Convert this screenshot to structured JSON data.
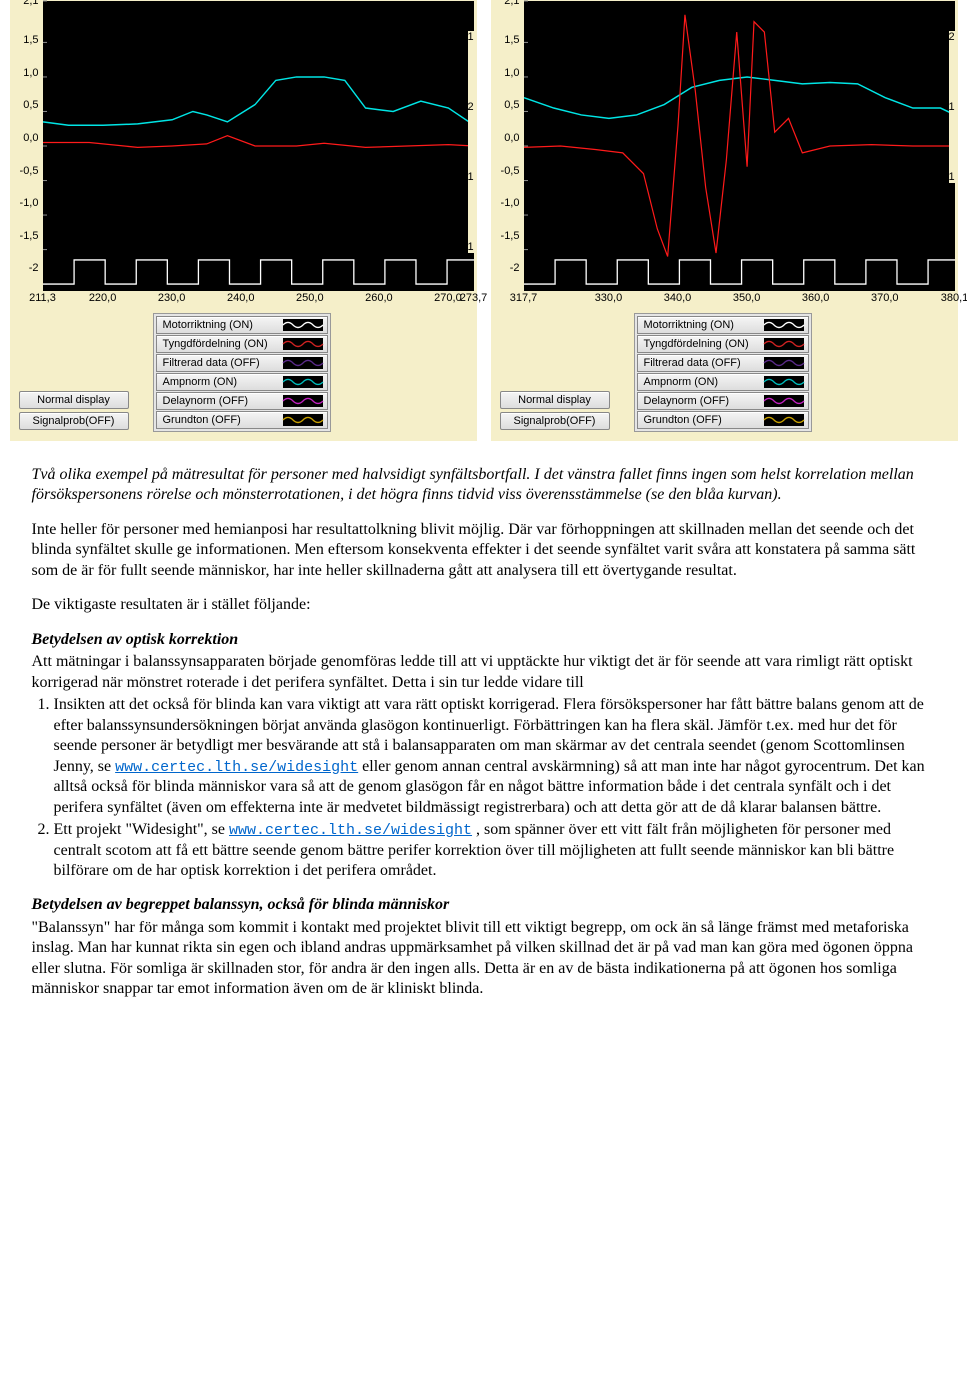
{
  "panels": [
    {
      "bg": "#000000",
      "panel_bg": "#f5efc9",
      "yticks": [
        "2,1",
        "1,5",
        "1,0",
        "0,5",
        "0,0",
        "-0,5",
        "-1,0",
        "-1,5",
        "-2"
      ],
      "ylim": [
        -2.1,
        2.1
      ],
      "xticks": [
        "211,3",
        "220,0",
        "230,0",
        "240,0",
        "250,0",
        "260,0",
        "270,0",
        "273,7"
      ],
      "xlim": [
        211.3,
        273.7
      ],
      "series": {
        "cyan": {
          "color": "#00e5e5",
          "width": 1.4,
          "pts": [
            [
              211.3,
              0.35
            ],
            [
              215,
              0.3
            ],
            [
              220,
              0.3
            ],
            [
              225,
              0.32
            ],
            [
              230,
              0.38
            ],
            [
              233,
              0.5
            ],
            [
              235,
              0.45
            ],
            [
              238,
              0.35
            ],
            [
              242,
              0.6
            ],
            [
              245,
              0.95
            ],
            [
              248,
              1.0
            ],
            [
              252,
              1.0
            ],
            [
              255,
              0.95
            ],
            [
              258,
              0.55
            ],
            [
              262,
              0.5
            ],
            [
              266,
              0.65
            ],
            [
              270,
              0.55
            ],
            [
              273.7,
              0.3
            ]
          ]
        },
        "red": {
          "color": "#ff1a1a",
          "width": 1.2,
          "pts": [
            [
              211.3,
              0.05
            ],
            [
              218,
              0.05
            ],
            [
              225,
              -0.02
            ],
            [
              230,
              0.0
            ],
            [
              235,
              0.03
            ],
            [
              238,
              0.15
            ],
            [
              242,
              0.0
            ],
            [
              248,
              0.0
            ],
            [
              252,
              0.04
            ],
            [
              258,
              -0.02
            ],
            [
              264,
              0.0
            ],
            [
              270,
              0.02
            ],
            [
              273.7,
              0.0
            ]
          ]
        }
      },
      "square_wave": {
        "color": "#ffffff",
        "low": -2.0,
        "high": -1.65,
        "period": 9,
        "phase": 211.3
      },
      "left_buttons": [
        "Normal display",
        "Signalprob(OFF)"
      ],
      "right_buttons": [
        {
          "label": "Motorriktning (ON)",
          "wave": "#ffffff"
        },
        {
          "label": "Tyngdfördelning (ON)",
          "wave": "#d02222"
        },
        {
          "label": "Filtrerad data (OFF)",
          "wave": "#5a2a8a"
        },
        {
          "label": "Ampnorm (ON)",
          "wave": "#00bcbc"
        },
        {
          "label": "Delaynorm (OFF)",
          "wave": "#c020c0"
        },
        {
          "label": "Grundton (OFF)",
          "wave": "#c8a000"
        }
      ],
      "extra_right_nums": [
        "1",
        "2",
        "1",
        "1"
      ]
    },
    {
      "bg": "#000000",
      "panel_bg": "#f5efc9",
      "yticks": [
        "2,1",
        "1,5",
        "1,0",
        "0,5",
        "0,0",
        "-0,5",
        "-1,0",
        "-1,5",
        "-2"
      ],
      "ylim": [
        -2.1,
        2.1
      ],
      "xticks": [
        "317,7",
        "330,0",
        "340,0",
        "350,0",
        "360,0",
        "370,0",
        "380,1"
      ],
      "xlim": [
        317.7,
        380.1
      ],
      "series": {
        "cyan": {
          "color": "#00e5e5",
          "width": 1.4,
          "pts": [
            [
              317.7,
              0.7
            ],
            [
              322,
              0.55
            ],
            [
              326,
              0.45
            ],
            [
              330,
              0.4
            ],
            [
              334,
              0.45
            ],
            [
              338,
              0.6
            ],
            [
              342,
              0.85
            ],
            [
              346,
              0.95
            ],
            [
              350,
              1.0
            ],
            [
              354,
              0.95
            ],
            [
              358,
              0.9
            ],
            [
              362,
              0.92
            ],
            [
              366,
              0.9
            ],
            [
              370,
              0.7
            ],
            [
              374,
              0.55
            ],
            [
              378,
              0.55
            ],
            [
              380.1,
              0.45
            ]
          ]
        },
        "red": {
          "color": "#ff1a1a",
          "width": 1.2,
          "pts": [
            [
              317.7,
              -0.02
            ],
            [
              323,
              0.0
            ],
            [
              328,
              -0.05
            ],
            [
              332,
              -0.1
            ],
            [
              335,
              -0.4
            ],
            [
              337,
              -1.2
            ],
            [
              338.5,
              -1.6
            ],
            [
              340,
              0.3
            ],
            [
              341,
              1.9
            ],
            [
              342.5,
              0.8
            ],
            [
              344,
              -0.6
            ],
            [
              345.5,
              -1.55
            ],
            [
              347,
              -0.2
            ],
            [
              348.5,
              1.65
            ],
            [
              350,
              -0.3
            ],
            [
              351,
              1.8
            ],
            [
              352.5,
              1.65
            ],
            [
              354,
              0.2
            ],
            [
              356,
              0.4
            ],
            [
              358,
              -0.1
            ],
            [
              362,
              0.0
            ],
            [
              368,
              0.02
            ],
            [
              374,
              0.0
            ],
            [
              380.1,
              0.0
            ]
          ]
        }
      },
      "square_wave": {
        "color": "#ffffff",
        "low": -2.0,
        "high": -1.65,
        "period": 9,
        "phase": 317.7
      },
      "left_buttons": [
        "Normal display",
        "Signalprob(OFF)"
      ],
      "right_buttons": [
        {
          "label": "Motorriktning (ON)",
          "wave": "#ffffff"
        },
        {
          "label": "Tyngdfördelning (ON)",
          "wave": "#d02222"
        },
        {
          "label": "Filtrerad data (OFF)",
          "wave": "#5a2a8a"
        },
        {
          "label": "Ampnorm (ON)",
          "wave": "#00bcbc"
        },
        {
          "label": "Delaynorm (OFF)",
          "wave": "#c020c0"
        },
        {
          "label": "Grundton (OFF)",
          "wave": "#c8a000"
        }
      ],
      "extra_right_nums": [
        "2",
        "1",
        "1"
      ]
    }
  ],
  "text": {
    "caption": "Två olika exempel på mätresultat för personer med halvsidigt synfältsbortfall. I det vänstra fallet finns ingen som helst korrelation mellan försökspersonens rörelse och mönsterrotationen, i det högra finns tidvid viss överensstämmelse (se den blåa kurvan).",
    "p2": "Inte heller för personer med hemianposi har resultattolkning blivit möjlig. Där var förhoppningen att skillnaden mellan det seende och det blinda synfältet skulle ge informationen. Men eftersom konsekventa effekter i det seende synfältet varit svåra att konstatera på samma sätt som de är för fullt seende människor, har inte heller skillnaderna gått att analysera till ett övertygande resultat.",
    "p3": "De viktigaste resultaten är i stället följande:",
    "h1": "Betydelsen av optisk korrektion",
    "p4": "Att mätningar i balanssynsapparaten började genomföras ledde till att vi upptäckte hur viktigt det är för seende att vara rimligt rätt optiskt korrigerad när mönstret roterade i det perifera synfältet. Detta i sin tur ledde vidare till",
    "li1a": "Insikten att det också för blinda kan vara viktigt att vara rätt optiskt korrigerad. Flera försökspersoner har fått bättre balans genom att de efter balanssynsundersökningen börjat använda glasögon kontinuerligt. Förbättringen kan ha flera skäl. Jämför t.ex. med hur det för seende personer är betydligt mer besvärande att stå i balansapparaten om man skärmar av det centrala seendet (genom Scottomlinsen Jenny, se ",
    "link1": "www.certec.lth.se/widesight",
    "li1b": " eller genom annan central avskärmning) så att man inte har något gyrocentrum. Det kan alltså också för blinda människor vara så att de genom glasögon får en något bättre information både i det centrala synfält och i det perifera synfältet (även om effekterna inte är medvetet bildmässigt registrerbara) och att detta gör att de då klarar balansen bättre.",
    "li2a": "Ett projekt \"Widesight\", se ",
    "link2": "www.certec.lth.se/widesight",
    "li2b": " , som spänner över ett vitt fält från möjligheten för personer med centralt scotom att få ett bättre seende genom bättre perifer korrektion över till möjligheten att fullt seende människor kan bli bättre bilförare om de har optisk korrektion i det perifera området.",
    "h2": "Betydelsen av begreppet balanssyn, också för blinda människor",
    "p5": "\"Balanssyn\" har för många som kommit i kontakt med projektet blivit till ett viktigt begrepp, om ock än så länge främst med metaforiska inslag. Man har kunnat rikta sin egen och ibland andras uppmärksamhet på vilken skillnad det är på vad man kan göra med ögonen öppna eller slutna. För somliga är skillnaden stor, för andra är den ingen alls. Detta är en av de bästa indikationerna på att ögonen hos somliga människor snappar tar emot information även om de är kliniskt blinda."
  }
}
